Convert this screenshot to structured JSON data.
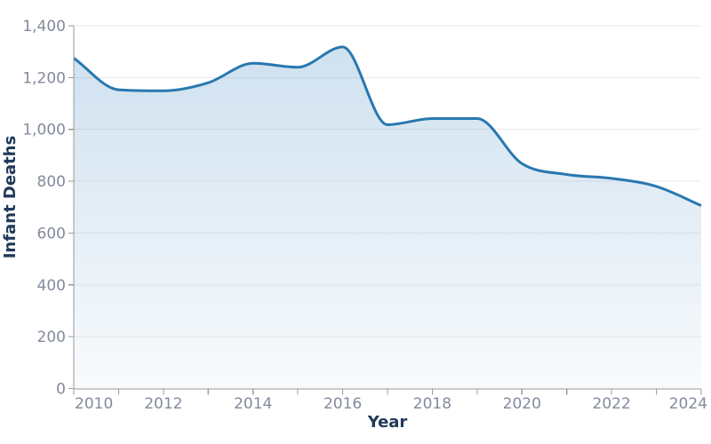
{
  "chart_data": {
    "type": "area",
    "title": "",
    "xlabel": "Year",
    "ylabel": "Infant Deaths",
    "x": [
      2010,
      2011,
      2012,
      2013,
      2014,
      2015,
      2016,
      2017,
      2018,
      2019,
      2020,
      2021,
      2022,
      2023,
      2024
    ],
    "series": [
      {
        "name": "Infant Deaths",
        "values": [
          1275,
          1153,
          1149,
          1180,
          1255,
          1240,
          1318,
          1018,
          1042,
          1042,
          868,
          826,
          811,
          780,
          706
        ]
      }
    ],
    "xlim": [
      2010,
      2024
    ],
    "ylim": [
      0,
      1400
    ],
    "smoothing": "monotone",
    "grid": "horizontal",
    "legend": "none",
    "ytick_labels": [
      {
        "value": 0,
        "label": "0"
      },
      {
        "value": 200,
        "label": "200"
      },
      {
        "value": 400,
        "label": "400"
      },
      {
        "value": 600,
        "label": "600"
      },
      {
        "value": 800,
        "label": "800"
      },
      {
        "value": 1000,
        "label": "1,000"
      },
      {
        "value": 1200,
        "label": "1,200"
      },
      {
        "value": 1400,
        "label": "1,400"
      }
    ],
    "xtick_labels": [
      {
        "value": 2010,
        "label": "2010"
      },
      {
        "value": 2011,
        "label": ""
      },
      {
        "value": 2012,
        "label": "2012"
      },
      {
        "value": 2013,
        "label": ""
      },
      {
        "value": 2014,
        "label": "2014"
      },
      {
        "value": 2015,
        "label": ""
      },
      {
        "value": 2016,
        "label": "2016"
      },
      {
        "value": 2017,
        "label": ""
      },
      {
        "value": 2018,
        "label": "2018"
      },
      {
        "value": 2019,
        "label": ""
      },
      {
        "value": 2020,
        "label": "2020"
      },
      {
        "value": 2021,
        "label": ""
      },
      {
        "value": 2022,
        "label": "2022"
      },
      {
        "value": 2023,
        "label": ""
      },
      {
        "value": 2024,
        "label": "2024"
      }
    ],
    "colors": {
      "line": "#2878b0",
      "area_top": "rgba(45,122,184,0.24)",
      "area_bottom": "rgba(45,122,184,0.03)",
      "grid": "#ebebeb",
      "axis": "#9a9a9a",
      "tick_label": "#848a9c",
      "axis_title": "#21395a",
      "background": "#ffffff"
    }
  }
}
